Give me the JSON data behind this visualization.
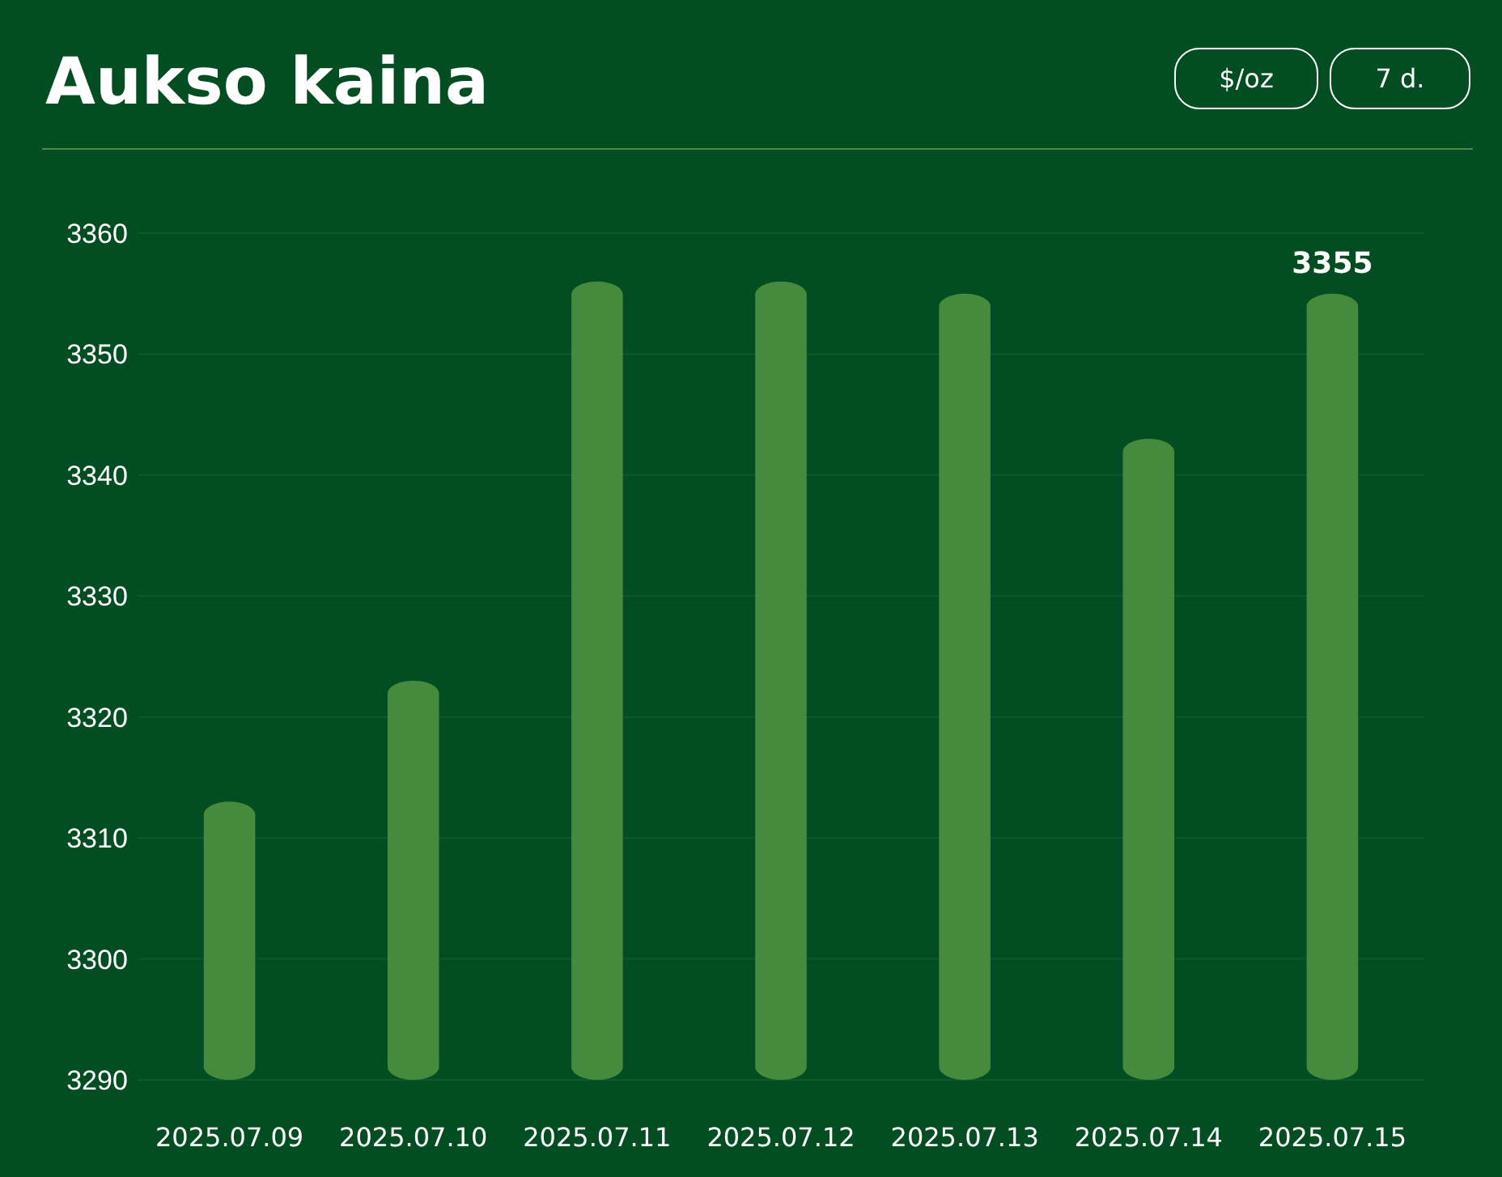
{
  "chart_data": {
    "type": "bar",
    "title": "Aukso kaina",
    "annotations": [
      "$/oz",
      "7 d."
    ],
    "categories": [
      "2025.07.09",
      "2025.07.10",
      "2025.07.11",
      "2025.07.12",
      "2025.07.13",
      "2025.07.14",
      "2025.07.15"
    ],
    "values": [
      3313,
      3323,
      3356,
      3356,
      3355,
      3343,
      3355
    ],
    "value_labels": [
      null,
      null,
      null,
      null,
      null,
      null,
      "3355"
    ],
    "color": "#468a3e",
    "ylim": [
      3290,
      3360
    ],
    "yticks": [
      3290,
      3300,
      3310,
      3320,
      3330,
      3340,
      3350,
      3360
    ],
    "grid": "y"
  }
}
